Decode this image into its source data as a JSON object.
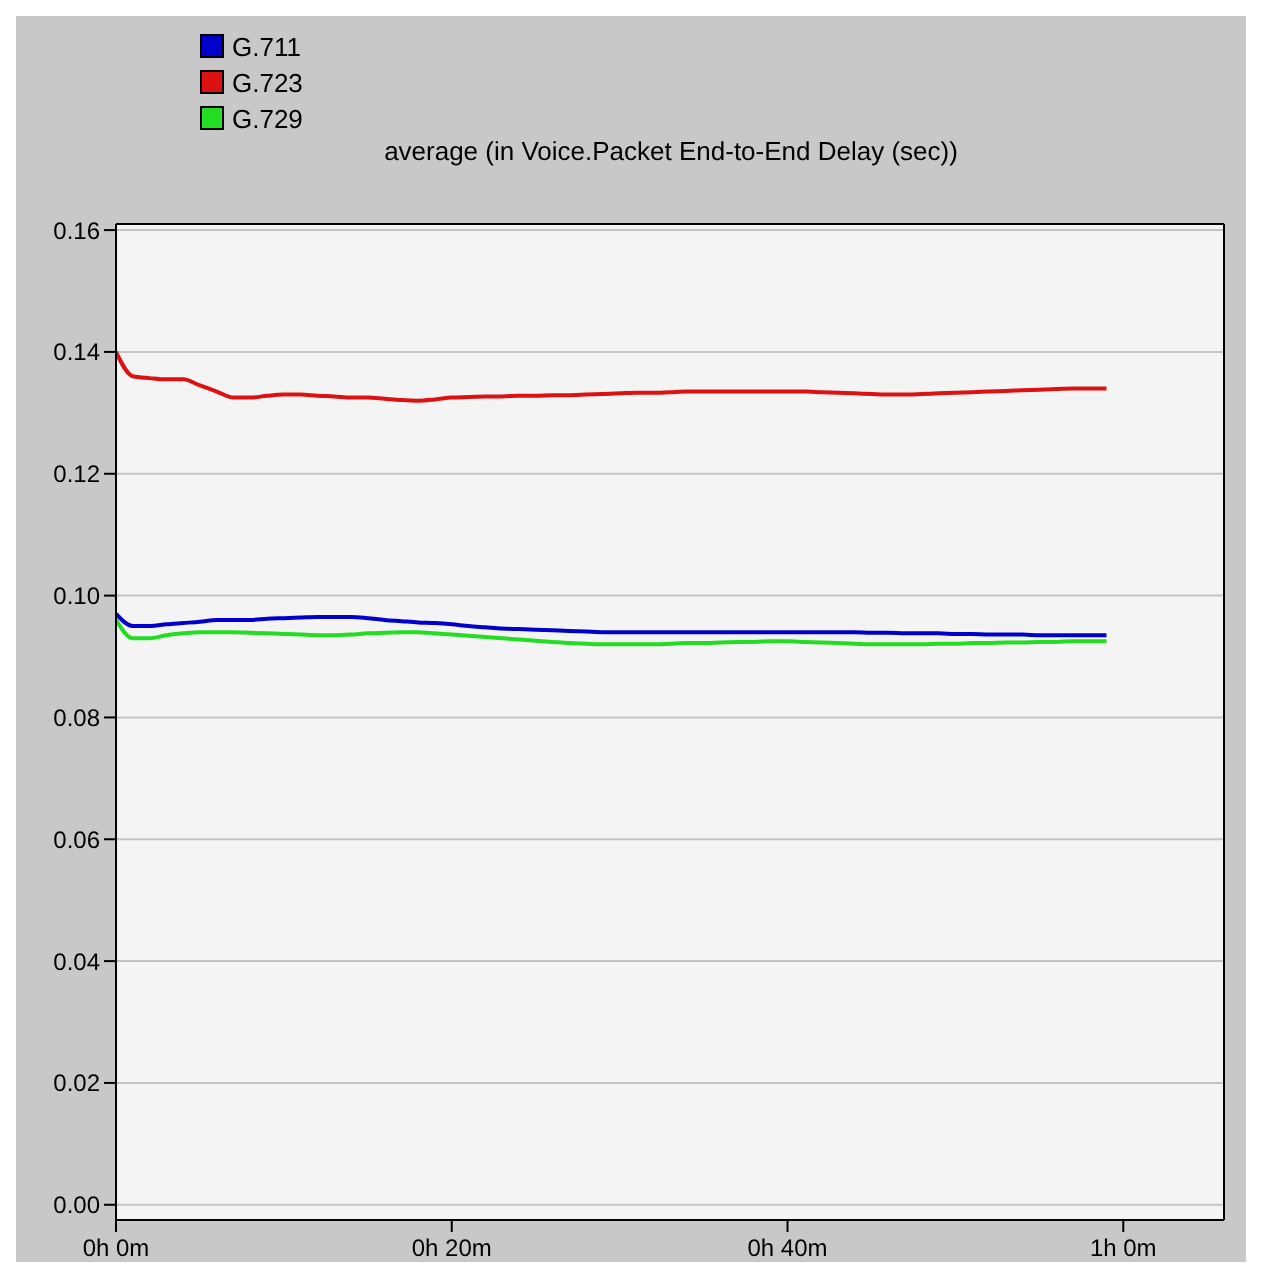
{
  "chart_data": {
    "type": "line",
    "title": "average (in Voice.Packet End-to-End Delay (sec))",
    "categories": [
      "0h 0m",
      null,
      null,
      null,
      null,
      null,
      null,
      null,
      null,
      null,
      null,
      null,
      null,
      null,
      null,
      null,
      null,
      null,
      null,
      null,
      "0h 20m",
      null,
      null,
      null,
      null,
      null,
      null,
      null,
      null,
      null,
      null,
      null,
      null,
      null,
      null,
      null,
      null,
      null,
      null,
      null,
      "0h 40m",
      null,
      null,
      null,
      null,
      null,
      null,
      null,
      null,
      null,
      null,
      null,
      null,
      null,
      null,
      null,
      null,
      null,
      null,
      null,
      "1h 0m",
      null,
      null,
      null,
      null,
      null,
      null
    ],
    "ylim": [
      -0.0025,
      0.161
    ],
    "yticks": [
      {
        "value": 0,
        "label": "0.00"
      },
      {
        "value": 0.02,
        "label": "0.02"
      },
      {
        "value": 0.04,
        "label": "0.04"
      },
      {
        "value": 0.06,
        "label": "0.06"
      },
      {
        "value": 0.08,
        "label": "0.08"
      },
      {
        "value": 0.1,
        "label": "0.10"
      },
      {
        "value": 0.12,
        "label": "0.12"
      },
      {
        "value": 0.14,
        "label": "0.14"
      },
      {
        "value": 0.16,
        "label": "0.16"
      }
    ],
    "grid": "y",
    "legend": "top left",
    "marker": "none",
    "line_style": "solid",
    "series": [
      {
        "name": "G.711",
        "color": "#0000cc",
        "values": [
          0.097,
          0.095,
          0.095,
          0.0953,
          0.0955,
          0.0957,
          0.096,
          0.096,
          0.096,
          0.0962,
          0.0963,
          0.0964,
          0.0965,
          0.0965,
          0.0965,
          0.0963,
          0.096,
          0.0958,
          0.0956,
          0.0955,
          0.0953,
          0.095,
          0.0948,
          0.0946,
          0.0945,
          0.0944,
          0.0943,
          0.0942,
          0.0941,
          0.094,
          0.094,
          0.094,
          0.094,
          0.094,
          0.094,
          0.094,
          0.094,
          0.094,
          0.094,
          0.094,
          0.094,
          0.094,
          0.094,
          0.094,
          0.094,
          0.0939,
          0.0939,
          0.0938,
          0.0938,
          0.0938,
          0.0937,
          0.0937,
          0.0936,
          0.0936,
          0.0936,
          0.0935,
          0.0935,
          0.0935,
          0.0935,
          0.0935,
          null,
          null,
          null,
          null,
          null,
          null,
          null
        ]
      },
      {
        "name": "G.723",
        "color": "#dd1111",
        "values": [
          0.14,
          0.136,
          0.1357,
          0.1355,
          0.1355,
          0.1345,
          0.1335,
          0.1325,
          0.1325,
          0.1328,
          0.133,
          0.133,
          0.1328,
          0.1327,
          0.1325,
          0.1325,
          0.1323,
          0.1321,
          0.132,
          0.1322,
          0.1325,
          0.1326,
          0.1327,
          0.1327,
          0.1328,
          0.1328,
          0.1329,
          0.1329,
          0.133,
          0.1331,
          0.1332,
          0.1333,
          0.1333,
          0.1334,
          0.1335,
          0.1335,
          0.1335,
          0.1335,
          0.1335,
          0.1335,
          0.1335,
          0.1335,
          0.1334,
          0.1333,
          0.1332,
          0.1331,
          0.133,
          0.133,
          0.1331,
          0.1332,
          0.1333,
          0.1334,
          0.1335,
          0.1336,
          0.1337,
          0.1338,
          0.1339,
          0.134,
          0.134,
          0.134,
          null,
          null,
          null,
          null,
          null,
          null,
          null
        ]
      },
      {
        "name": "G.729",
        "color": "#22dd22",
        "values": [
          0.096,
          0.093,
          0.093,
          0.0935,
          0.0938,
          0.094,
          0.094,
          0.094,
          0.0939,
          0.0938,
          0.0937,
          0.0936,
          0.0935,
          0.0935,
          0.0936,
          0.0938,
          0.0939,
          0.094,
          0.094,
          0.0938,
          0.0936,
          0.0934,
          0.0932,
          0.093,
          0.0928,
          0.0926,
          0.0924,
          0.0922,
          0.0921,
          0.092,
          0.092,
          0.092,
          0.092,
          0.0921,
          0.0922,
          0.0922,
          0.0923,
          0.0924,
          0.0924,
          0.0925,
          0.0925,
          0.0924,
          0.0923,
          0.0922,
          0.0921,
          0.092,
          0.092,
          0.092,
          0.092,
          0.0921,
          0.0921,
          0.0922,
          0.0922,
          0.0923,
          0.0923,
          0.0924,
          0.0924,
          0.0925,
          0.0925,
          0.0925,
          null,
          null,
          null,
          null,
          null,
          null,
          null
        ]
      }
    ]
  }
}
